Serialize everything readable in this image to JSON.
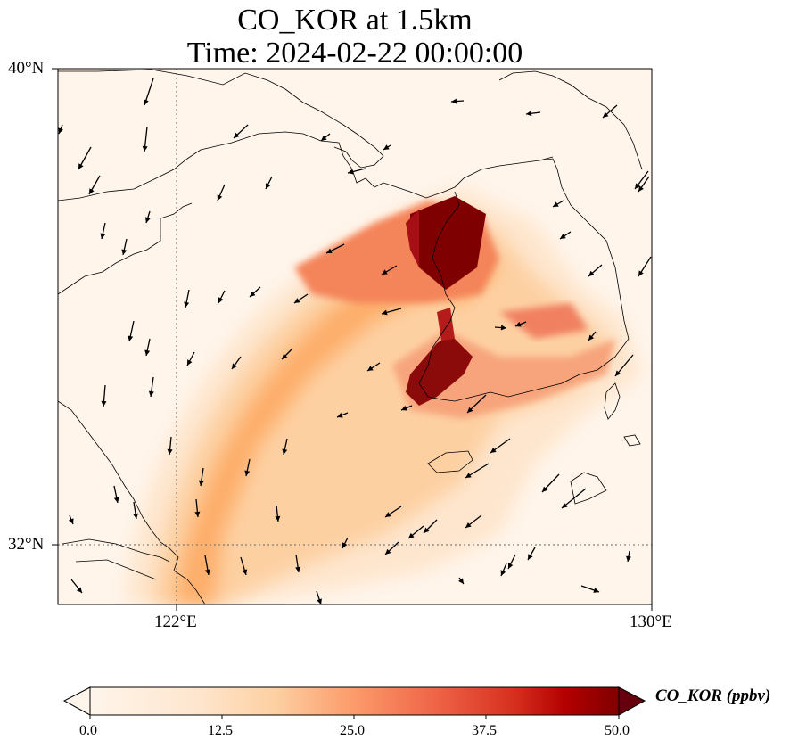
{
  "title": {
    "line1": "CO_KOR at 1.5km",
    "line2": "Time: 2024-02-22 00:00:00"
  },
  "map": {
    "lat_ticks": [
      "40°N",
      "32°N"
    ],
    "lon_ticks": [
      "122°E",
      "130°E"
    ],
    "extent": {
      "lon_min": 120,
      "lon_max": 130,
      "lat_min": 31,
      "lat_max": 40
    }
  },
  "colorbar": {
    "label": "CO_KOR (ppbv)",
    "ticks": [
      "0.0",
      "12.5",
      "25.0",
      "37.5",
      "50.0"
    ],
    "colors": [
      "#fff5eb",
      "#fdd9b4",
      "#fda762",
      "#e6550d",
      "#a50f15",
      "#67000d"
    ]
  }
}
